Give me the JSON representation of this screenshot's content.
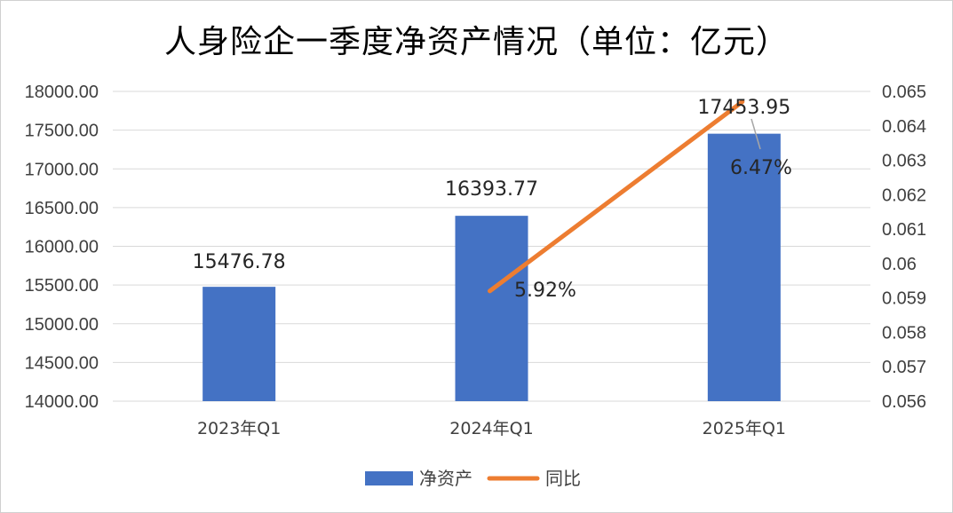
{
  "chart_data": {
    "type": "bar+line",
    "title": "人身险企一季度净资产情况（单位：亿元）",
    "categories": [
      "2023年Q1",
      "2024年Q1",
      "2025年Q1"
    ],
    "series": [
      {
        "name": "净资产",
        "type": "bar",
        "axis": "left",
        "values": [
          15476.78,
          16393.77,
          17453.95
        ],
        "labels": [
          "15476.78",
          "16393.77",
          "17453.95"
        ],
        "color": "#4472c4"
      },
      {
        "name": "同比",
        "type": "line",
        "axis": "right",
        "values": [
          null,
          0.0592,
          0.0647
        ],
        "labels": [
          "",
          "5.92%",
          "6.47%"
        ],
        "color": "#ed7d31"
      }
    ],
    "ylim": [
      14000,
      18000
    ],
    "y_ticks": [
      "14000.00",
      "14500.00",
      "15000.00",
      "15500.00",
      "16000.00",
      "16500.00",
      "17000.00",
      "17500.00",
      "18000.00"
    ],
    "y2lim": [
      0.056,
      0.065
    ],
    "y2_ticks": [
      "0.056",
      "0.057",
      "0.058",
      "0.059",
      "0.06",
      "0.061",
      "0.062",
      "0.063",
      "0.064",
      "0.065"
    ],
    "grid": true,
    "legend": "bottom-center"
  }
}
